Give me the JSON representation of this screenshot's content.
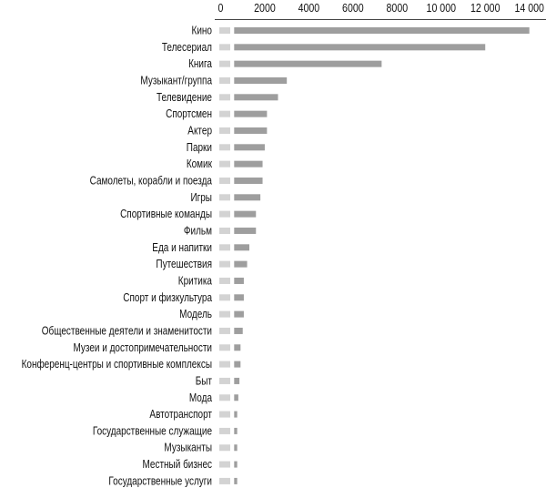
{
  "chart_data": {
    "type": "bar",
    "orientation": "horizontal",
    "title": "",
    "xlabel": "",
    "ylabel": "",
    "xlim": [
      0,
      14000
    ],
    "x_ticks": [
      "0",
      "2000",
      "4000",
      "6000",
      "8000",
      "10 000",
      "12 000",
      "14 000"
    ],
    "x_tick_values": [
      0,
      2000,
      4000,
      6000,
      8000,
      10000,
      12000,
      14000
    ],
    "axis_position": "top",
    "grid": false,
    "colors": {
      "bar": "#9e9e9e",
      "marker": "#d3d3d3",
      "axis": "#444444"
    },
    "categories": [
      "Кино",
      "Телесериал",
      "Книга",
      "Музыкант/группа",
      "Телевидение",
      "Спортсмен",
      "Актер",
      "Парки",
      "Комик",
      "Самолеты, корабли и поезда",
      "Игры",
      "Спортивные команды",
      "Фильм",
      "Еда и напитки",
      "Путешествия",
      "Критика",
      "Спорт и физкультура",
      "Модель",
      "Общественные деятели и знаменитости",
      "Музеи и достопримечательности",
      "Конференц-центры и спортивные комплексы",
      "Быт",
      "Мода",
      "Автотранспорт",
      "Государственные служащие",
      "Музыканты",
      "Местный бизнес",
      "Государственные услуги"
    ],
    "values": [
      14000,
      12000,
      7300,
      3000,
      2600,
      2100,
      2100,
      2000,
      1900,
      1900,
      1800,
      1600,
      1600,
      1300,
      1200,
      1050,
      1050,
      1050,
      1000,
      900,
      900,
      850,
      800,
      750,
      750,
      750,
      750,
      750
    ]
  }
}
